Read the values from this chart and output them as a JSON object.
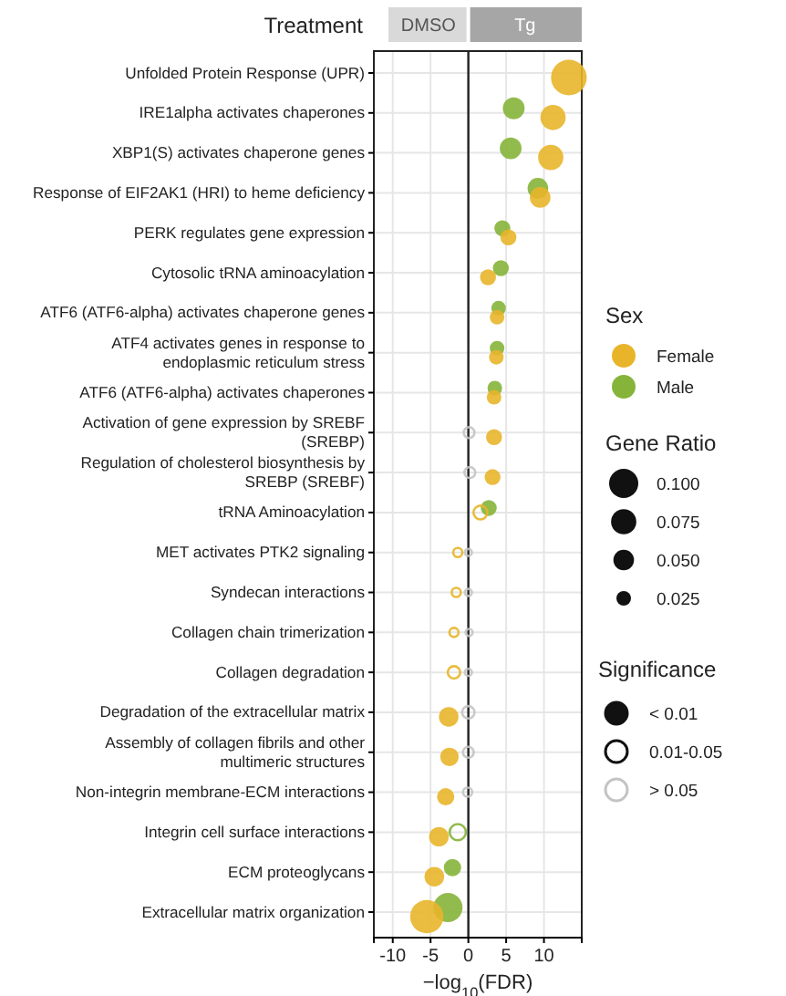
{
  "chart_data": {
    "type": "scatter",
    "orientation": "horizontal",
    "categories": [
      "Unfolded Protein Response (UPR)",
      "IRE1alpha activates chaperones",
      "XBP1(S) activates chaperone genes",
      "Response of EIF2AK1 (HRI) to heme deficiency",
      "PERK regulates gene expression",
      "Cytosolic tRNA aminoacylation",
      "ATF6 (ATF6-alpha) activates chaperone genes",
      "ATF4 activates genes in response to\nendoplasmic reticulum stress",
      "ATF6 (ATF6-alpha) activates chaperones",
      "Activation of gene expression by SREBF\n(SREBP)",
      "Regulation of cholesterol biosynthesis by\nSREBP (SREBF)",
      "tRNA Aminoacylation",
      "MET activates PTK2 signaling",
      "Syndecan interactions",
      "Collagen chain trimerization",
      "Collagen degradation",
      "Degradation of the extracellular matrix",
      "Assembly of collagen fibrils and other\nmultimeric structures",
      "Non-integrin membrane-ECM interactions",
      "Integrin cell surface interactions",
      "ECM proteoglycans",
      "Extracellular matrix organization"
    ],
    "xlabel": "−log$_{10}$(FDR)",
    "xlim": [
      -12.5,
      15
    ],
    "xticks": [
      -10,
      -5,
      0,
      5,
      10
    ],
    "grid": true,
    "legend": "right",
    "legend_title": "Sex",
    "annotations": [
      "Treatment",
      "DMSO",
      "Tg",
      "Gene Ratio",
      "Significance",
      "< 0.01",
      "0.01-0.05"
    ],
    "size_legend": [
      {
        "value": 0.1,
        "label": "0.100"
      },
      {
        "value": 0.075,
        "label": "0.075"
      },
      {
        "value": 0.05,
        "label": "0.050"
      },
      {
        "value": 0.025,
        "label": "0.025"
      }
    ],
    "series": [
      {
        "name": "Female",
        "color": "#e8b52a",
        "values": [
          13.3,
          11.2,
          10.9,
          9.5,
          5.3,
          2.6,
          3.8,
          3.7,
          3.4,
          3.4,
          3.2,
          null,
          null,
          null,
          null,
          null,
          -2.6,
          -2.5,
          -3.0,
          -3.9,
          -4.5,
          -5.5
        ],
        "sizes": [
          0.15,
          0.075,
          0.075,
          0.05,
          0.03,
          0.03,
          0.025,
          0.025,
          0.025,
          0.03,
          0.03,
          null,
          null,
          null,
          null,
          null,
          0.045,
          0.04,
          0.035,
          0.045,
          0.045,
          0.13
        ]
      },
      {
        "name": "Male",
        "color": "#86b43a",
        "values": [
          null,
          6.0,
          5.6,
          9.2,
          4.5,
          4.3,
          4.0,
          3.8,
          3.5,
          null,
          null,
          2.7,
          null,
          null,
          null,
          null,
          null,
          null,
          null,
          null,
          -2.1,
          -2.7
        ],
        "sizes": [
          null,
          0.056,
          0.056,
          0.05,
          0.03,
          0.03,
          0.025,
          0.025,
          0.025,
          null,
          null,
          0.03,
          null,
          null,
          null,
          null,
          null,
          null,
          null,
          null,
          0.035,
          0.1
        ]
      },
      {
        "line_style": "solid",
        "color": "#e8b52a",
        "values": [
          null,
          null,
          null,
          null,
          null,
          null,
          null,
          null,
          null,
          null,
          null,
          1.6,
          -1.4,
          -1.6,
          -1.9,
          -1.9,
          null,
          null,
          null,
          null,
          null,
          null
        ],
        "sizes": [
          null,
          null,
          null,
          null,
          null,
          null,
          null,
          null,
          null,
          null,
          null,
          0.03,
          0.015,
          0.015,
          0.015,
          0.025,
          null,
          null,
          null,
          null,
          null,
          null
        ]
      },
      {
        "line_style": "solid",
        "color": "#86b43a",
        "values": [
          null,
          null,
          null,
          null,
          null,
          null,
          null,
          null,
          null,
          null,
          null,
          null,
          null,
          null,
          null,
          null,
          null,
          null,
          null,
          -1.4,
          null,
          null
        ],
        "sizes": [
          null,
          null,
          null,
          null,
          null,
          null,
          null,
          null,
          null,
          null,
          null,
          null,
          null,
          null,
          null,
          null,
          null,
          null,
          null,
          0.04,
          null,
          null
        ]
      },
      {
        "name": "> 0.05",
        "line_style": "solid",
        "color": "#c4c4c4",
        "values": [
          null,
          null,
          null,
          null,
          null,
          null,
          null,
          null,
          null,
          0.1,
          0.2,
          null,
          0.0,
          0.0,
          0.1,
          0.0,
          0.0,
          0.0,
          -0.1,
          null,
          null,
          null
        ],
        "sizes": [
          null,
          null,
          null,
          null,
          null,
          null,
          null,
          null,
          null,
          0.02,
          0.02,
          null,
          0.01,
          0.01,
          0.01,
          0.01,
          0.025,
          0.02,
          0.015,
          null,
          null,
          null
        ]
      }
    ]
  }
}
